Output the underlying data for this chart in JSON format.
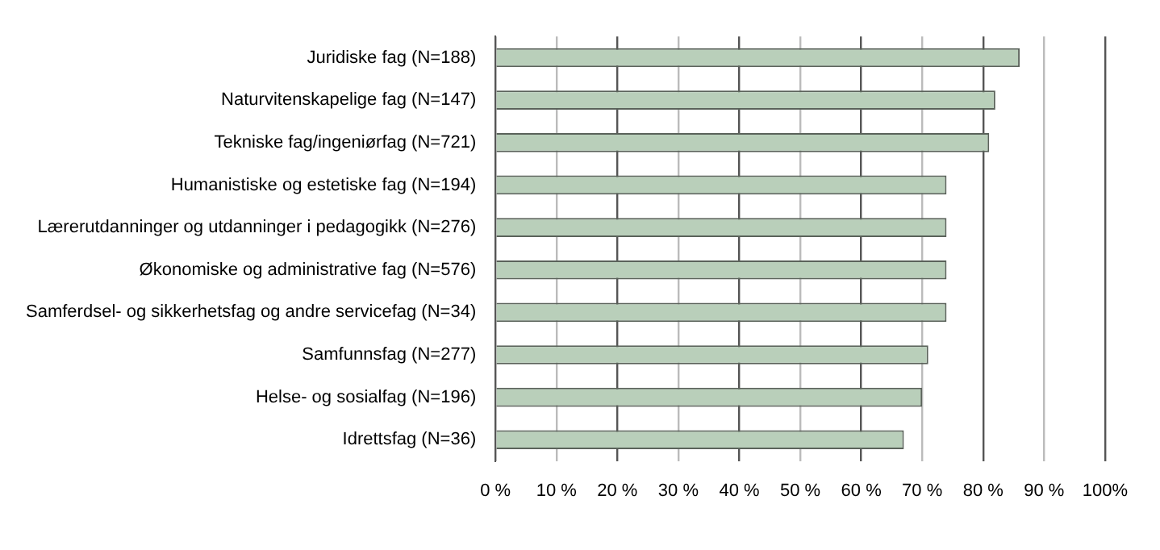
{
  "chart_data": {
    "type": "bar",
    "orientation": "horizontal",
    "categories": [
      "Juridiske fag (N=188)",
      "Naturvitenskapelige fag (N=147)",
      "Tekniske fag/ingeniørfag (N=721)",
      "Humanistiske og estetiske fag (N=194)",
      "Lærerutdanninger og utdanninger i pedagogikk (N=276)",
      "Økonomiske og administrative fag (N=576)",
      "Samferdsel- og sikkerhetsfag og andre servicefag (N=34)",
      "Samfunnsfag (N=277)",
      "Helse- og sosialfag (N=196)",
      "Idrettsfag (N=36)"
    ],
    "values": [
      86,
      82,
      81,
      74,
      74,
      74,
      74,
      71,
      70,
      67
    ],
    "color": "#b9cfba",
    "xlim": [
      0,
      100
    ],
    "xticks": [
      {
        "value": 0,
        "label": "0 %"
      },
      {
        "value": 10,
        "label": "10 %"
      },
      {
        "value": 20,
        "label": "20 %"
      },
      {
        "value": 30,
        "label": "30 %"
      },
      {
        "value": 40,
        "label": "40 %"
      },
      {
        "value": 50,
        "label": "50 %"
      },
      {
        "value": 60,
        "label": "60 %"
      },
      {
        "value": 70,
        "label": "70 %"
      },
      {
        "value": 80,
        "label": "80 %"
      },
      {
        "value": 90,
        "label": "90 %"
      },
      {
        "value": 100,
        "label": "100%"
      }
    ],
    "grid": "x",
    "legend": false
  }
}
